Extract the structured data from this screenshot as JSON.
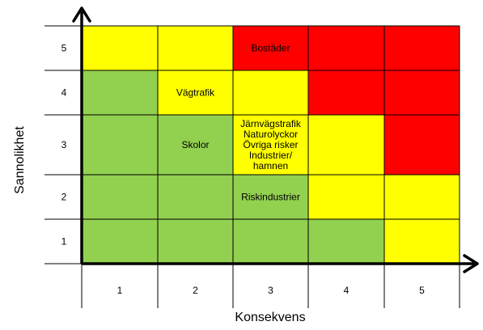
{
  "chart_data": {
    "type": "heatmap",
    "title": "",
    "xlabel": "Konsekvens",
    "ylabel": "Sannolikhet",
    "x_categories": [
      "1",
      "2",
      "3",
      "4",
      "5"
    ],
    "y_categories": [
      "1",
      "2",
      "3",
      "4",
      "5"
    ],
    "colors": {
      "green": "#92d050",
      "yellow": "#ffff00",
      "red": "#ff0000"
    },
    "cells": [
      {
        "x": 1,
        "y": 5,
        "level": "yellow"
      },
      {
        "x": 2,
        "y": 5,
        "level": "yellow"
      },
      {
        "x": 3,
        "y": 5,
        "level": "red"
      },
      {
        "x": 4,
        "y": 5,
        "level": "red"
      },
      {
        "x": 5,
        "y": 5,
        "level": "red"
      },
      {
        "x": 1,
        "y": 4,
        "level": "green"
      },
      {
        "x": 2,
        "y": 4,
        "level": "yellow"
      },
      {
        "x": 3,
        "y": 4,
        "level": "yellow"
      },
      {
        "x": 4,
        "y": 4,
        "level": "red"
      },
      {
        "x": 5,
        "y": 4,
        "level": "red"
      },
      {
        "x": 1,
        "y": 3,
        "level": "green"
      },
      {
        "x": 2,
        "y": 3,
        "level": "green"
      },
      {
        "x": 3,
        "y": 3,
        "level": "yellow"
      },
      {
        "x": 4,
        "y": 3,
        "level": "yellow"
      },
      {
        "x": 5,
        "y": 3,
        "level": "red"
      },
      {
        "x": 1,
        "y": 2,
        "level": "green"
      },
      {
        "x": 2,
        "y": 2,
        "level": "green"
      },
      {
        "x": 3,
        "y": 2,
        "level": "green"
      },
      {
        "x": 4,
        "y": 2,
        "level": "yellow"
      },
      {
        "x": 5,
        "y": 2,
        "level": "yellow"
      },
      {
        "x": 1,
        "y": 1,
        "level": "green"
      },
      {
        "x": 2,
        "y": 1,
        "level": "green"
      },
      {
        "x": 3,
        "y": 1,
        "level": "green"
      },
      {
        "x": 4,
        "y": 1,
        "level": "green"
      },
      {
        "x": 5,
        "y": 1,
        "level": "yellow"
      }
    ],
    "annotations": [
      {
        "x": 3,
        "y": 5,
        "lines": [
          "Bostäder"
        ]
      },
      {
        "x": 2,
        "y": 4,
        "lines": [
          "Vägtrafik"
        ]
      },
      {
        "x": 2,
        "y": 3,
        "lines": [
          "Skolor"
        ]
      },
      {
        "x": 3,
        "y": 3,
        "lines": [
          "Järnvägstrafik",
          "Naturolyckor",
          "Övriga risker",
          "Industrier/",
          "hamnen"
        ]
      },
      {
        "x": 3,
        "y": 2,
        "lines": [
          "Riskindustrier"
        ]
      }
    ]
  }
}
